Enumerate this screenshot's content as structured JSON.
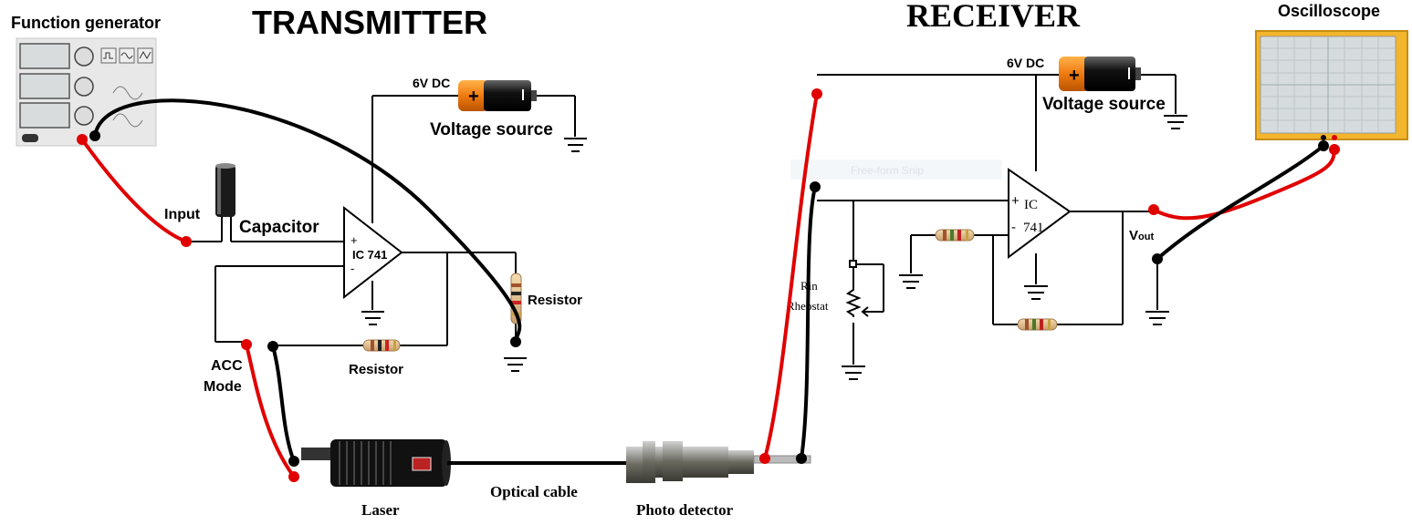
{
  "titles": {
    "transmitter": "TRANSMITTER",
    "receiver": "RECEIVER"
  },
  "labels": {
    "function_generator": "Function generator",
    "oscilloscope": "Oscilloscope",
    "input": "Input",
    "capacitor": "Capacitor",
    "tx_voltage": "6V DC",
    "tx_voltage_source": "Voltage source",
    "tx_ic": "IC 741",
    "tx_resistor_right": "Resistor",
    "tx_resistor_bottom": "Resistor",
    "acc_mode_line1": "ACC",
    "acc_mode_line2": "Mode",
    "laser": "Laser",
    "optical_cable": "Optical cable",
    "photo_detector": "Photo detector",
    "rx_voltage": "6V DC",
    "rx_voltage_source": "Voltage source",
    "rx_ic_line1": "IC",
    "rx_ic_line2": "741",
    "vout": "V",
    "vout_sub": "out",
    "rin": "Rin",
    "rheostat": "Rheostat",
    "free_form_snip": "Free-form Snip",
    "op_plus": "+",
    "op_minus": "-"
  },
  "colors": {
    "wire_red": "#e00000",
    "wire_black": "#000000",
    "battery_orange": "#f07a10",
    "scope_frame": "#f2b52c"
  }
}
